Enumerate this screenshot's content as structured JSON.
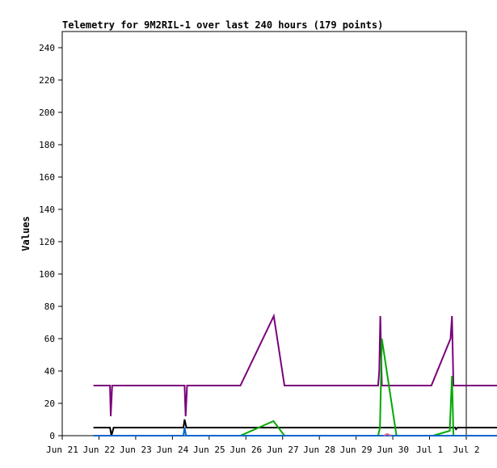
{
  "chart_data": {
    "type": "line",
    "title": "Telemetry for 9M2RIL-1 over last 240 hours (179 points)",
    "xlabel": "",
    "ylabel": "Values",
    "x_tick_labels": [
      "Jun 21",
      "Jun 22",
      "Jun 23",
      "Jun 24",
      "Jun 25",
      "Jun 26",
      "Jun 27",
      "Jun 28",
      "Jun 29",
      "Jun 30",
      "Jul 1",
      "Jul 2"
    ],
    "x_unit": "days since Jun 21 00:00",
    "xlim": [
      0,
      11
    ],
    "ylim": [
      0,
      250
    ],
    "y_ticks": [
      0,
      20,
      40,
      60,
      80,
      100,
      120,
      140,
      160,
      180,
      200,
      220,
      240
    ],
    "grid": false,
    "series": [
      {
        "color": "#7a007a",
        "points": [
          [
            0.85,
            31
          ],
          [
            1.3,
            31
          ],
          [
            1.32,
            12
          ],
          [
            1.36,
            31
          ],
          [
            3.33,
            31
          ],
          [
            3.36,
            12
          ],
          [
            3.4,
            31
          ],
          [
            4.85,
            31
          ],
          [
            5.76,
            74
          ],
          [
            6.05,
            31
          ],
          [
            8.6,
            31
          ],
          [
            8.63,
            40
          ],
          [
            8.66,
            74
          ],
          [
            8.7,
            31
          ],
          [
            10.05,
            31
          ],
          [
            10.57,
            60
          ],
          [
            10.61,
            74
          ],
          [
            10.65,
            31
          ],
          [
            13.3,
            31
          ]
        ]
      },
      {
        "color": "#000000",
        "points": [
          [
            0.85,
            5
          ],
          [
            1.3,
            5
          ],
          [
            1.34,
            0
          ],
          [
            1.4,
            5
          ],
          [
            3.3,
            5
          ],
          [
            3.33,
            10
          ],
          [
            3.38,
            5
          ],
          [
            10.6,
            5
          ],
          [
            10.7,
            5
          ],
          [
            10.72,
            4
          ],
          [
            10.76,
            5
          ],
          [
            13.3,
            5
          ]
        ]
      },
      {
        "color": "#00aa00",
        "points": [
          [
            4.85,
            0
          ],
          [
            5.75,
            9
          ],
          [
            6.05,
            0
          ],
          [
            8.6,
            0
          ],
          [
            8.65,
            5
          ],
          [
            8.7,
            60
          ],
          [
            9.1,
            0
          ],
          [
            10.1,
            0
          ],
          [
            10.55,
            3
          ],
          [
            10.61,
            37
          ],
          [
            10.65,
            0
          ],
          [
            13.3,
            0
          ]
        ]
      },
      {
        "color": "#0066cc",
        "points": [
          [
            0.85,
            0
          ],
          [
            3.3,
            0
          ],
          [
            3.33,
            5
          ],
          [
            3.37,
            0
          ],
          [
            13.3,
            0
          ]
        ]
      },
      {
        "color": "#dd6699",
        "points": [
          [
            8.75,
            0
          ],
          [
            8.85,
            1
          ],
          [
            8.95,
            0
          ]
        ]
      }
    ]
  }
}
